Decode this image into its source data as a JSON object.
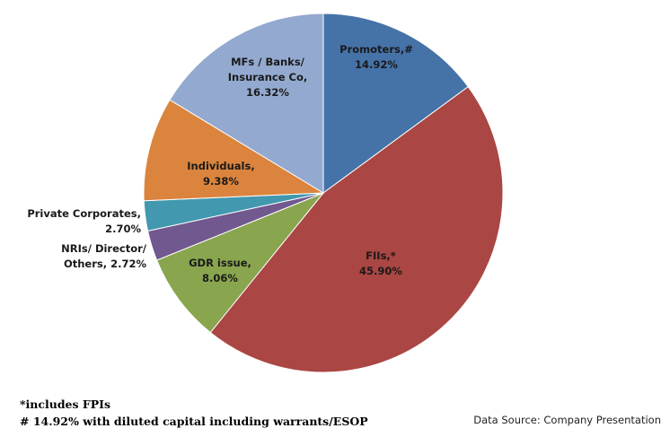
{
  "chart_data": {
    "type": "pie",
    "title": "",
    "start": "top",
    "direction": "clockwise",
    "slices": [
      {
        "label": [
          "Promoters,#",
          "14.92%"
        ],
        "value": 14.92,
        "color": "#4572a7"
      },
      {
        "label": [
          "FIIs,*",
          "45.90%"
        ],
        "value": 45.9,
        "color": "#aa4643"
      },
      {
        "label": [
          "GDR issue,",
          "8.06%"
        ],
        "value": 8.06,
        "color": "#89a54e"
      },
      {
        "label": [
          "NRIs/ Director/",
          "Others, 2.72%"
        ],
        "value": 2.72,
        "color": "#71588f"
      },
      {
        "label": [
          "Private Corporates,",
          "2.70%"
        ],
        "value": 2.7,
        "color": "#4198af"
      },
      {
        "label": [
          "Individuals,",
          "9.38%"
        ],
        "value": 9.38,
        "color": "#db843d"
      },
      {
        "label": [
          "MFs / Banks/",
          "Insurance Co,",
          "16.32%"
        ],
        "value": 16.32,
        "color": "#93a9cf"
      }
    ]
  },
  "footnotes": {
    "fpi": "*includes FPIs",
    "diluted": "# 14.92% with diluted capital including warrants/ESOP"
  },
  "source": "Data Source: Company Presentation"
}
